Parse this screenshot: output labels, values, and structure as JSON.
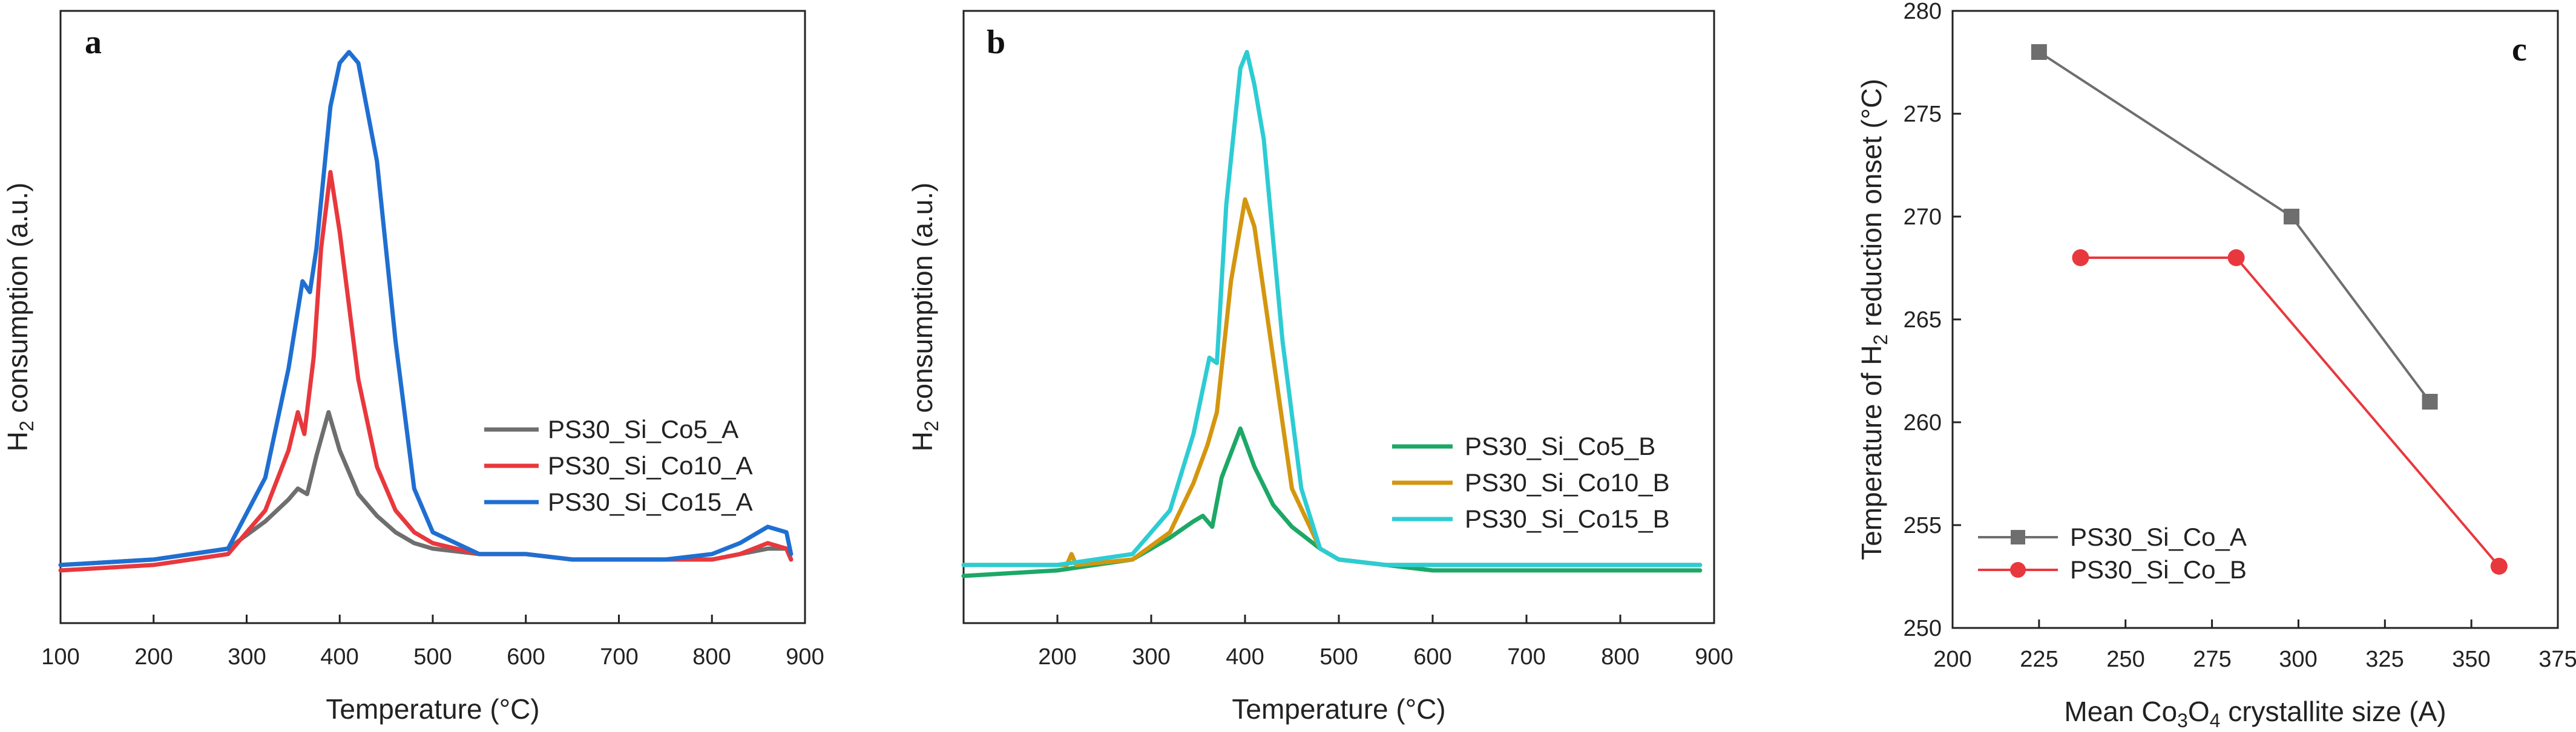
{
  "chart_data": [
    {
      "type": "line",
      "panel": "a",
      "xlabel": "Temperature (°C)",
      "ylabel": "H2 consumption (a.u.)",
      "xlim": [
        100,
        900
      ],
      "ylim": [
        0,
        1.0
      ],
      "xticks": [
        100,
        200,
        300,
        400,
        500,
        600,
        700,
        800,
        900
      ],
      "legend_position": "center-right",
      "series": [
        {
          "name": "PS30_Si_Co5_A",
          "color": "#6e6e6e",
          "x": [
            100,
            200,
            280,
            320,
            345,
            355,
            365,
            375,
            388,
            400,
            420,
            440,
            460,
            480,
            500,
            550,
            600,
            650,
            700,
            750,
            800,
            830,
            860,
            880,
            885
          ],
          "y": [
            0.04,
            0.05,
            0.07,
            0.12,
            0.16,
            0.18,
            0.17,
            0.24,
            0.32,
            0.25,
            0.17,
            0.13,
            0.1,
            0.08,
            0.07,
            0.06,
            0.06,
            0.05,
            0.05,
            0.05,
            0.05,
            0.06,
            0.07,
            0.07,
            0.05
          ]
        },
        {
          "name": "PS30_Si_Co10_A",
          "color": "#e8383d",
          "x": [
            100,
            200,
            280,
            320,
            345,
            355,
            362,
            372,
            380,
            390,
            400,
            420,
            440,
            460,
            480,
            500,
            550,
            600,
            650,
            700,
            750,
            800,
            830,
            860,
            880,
            885
          ],
          "y": [
            0.03,
            0.04,
            0.06,
            0.14,
            0.25,
            0.32,
            0.28,
            0.42,
            0.62,
            0.76,
            0.65,
            0.38,
            0.22,
            0.14,
            0.1,
            0.08,
            0.06,
            0.06,
            0.05,
            0.05,
            0.05,
            0.05,
            0.06,
            0.08,
            0.07,
            0.05
          ]
        },
        {
          "name": "PS30_Si_Co15_A",
          "color": "#1f6fd1",
          "x": [
            100,
            200,
            280,
            320,
            345,
            360,
            368,
            375,
            390,
            400,
            410,
            420,
            440,
            460,
            480,
            500,
            550,
            600,
            650,
            700,
            750,
            800,
            830,
            860,
            880,
            885
          ],
          "y": [
            0.04,
            0.05,
            0.07,
            0.2,
            0.4,
            0.56,
            0.54,
            0.62,
            0.88,
            0.96,
            0.98,
            0.96,
            0.78,
            0.45,
            0.18,
            0.1,
            0.06,
            0.06,
            0.05,
            0.05,
            0.05,
            0.06,
            0.08,
            0.11,
            0.1,
            0.06
          ]
        }
      ]
    },
    {
      "type": "line",
      "panel": "b",
      "xlabel": "Temperature (°C)",
      "ylabel": "H2 consumption (a.u.)",
      "xlim": [
        100,
        900
      ],
      "ylim": [
        0,
        1.0
      ],
      "xticks": [
        200,
        300,
        400,
        500,
        600,
        700,
        800,
        900
      ],
      "legend_position": "center-right",
      "series": [
        {
          "name": "PS30_Si_Co5_B",
          "color": "#1ca866",
          "x": [
            100,
            200,
            280,
            320,
            345,
            355,
            365,
            375,
            395,
            410,
            430,
            450,
            480,
            500,
            550,
            600,
            650,
            700,
            750,
            800,
            850,
            885
          ],
          "y": [
            0.02,
            0.03,
            0.05,
            0.09,
            0.12,
            0.13,
            0.11,
            0.2,
            0.29,
            0.22,
            0.15,
            0.11,
            0.07,
            0.05,
            0.04,
            0.03,
            0.03,
            0.03,
            0.03,
            0.03,
            0.03,
            0.03
          ]
        },
        {
          "name": "PS30_Si_Co10_B",
          "color": "#d4960f",
          "x": [
            100,
            200,
            210,
            215,
            220,
            280,
            320,
            345,
            360,
            370,
            385,
            400,
            410,
            430,
            450,
            480,
            500,
            550,
            600,
            650,
            700,
            800,
            885
          ],
          "y": [
            0.04,
            0.04,
            0.04,
            0.06,
            0.04,
            0.05,
            0.1,
            0.19,
            0.26,
            0.32,
            0.56,
            0.71,
            0.66,
            0.42,
            0.18,
            0.07,
            0.05,
            0.04,
            0.04,
            0.04,
            0.04,
            0.04,
            0.04
          ]
        },
        {
          "name": "PS30_Si_Co15_B",
          "color": "#2dccd3",
          "x": [
            100,
            200,
            280,
            320,
            345,
            362,
            370,
            380,
            395,
            402,
            410,
            420,
            440,
            460,
            480,
            500,
            550,
            600,
            650,
            700,
            800,
            885
          ],
          "y": [
            0.04,
            0.04,
            0.06,
            0.14,
            0.28,
            0.42,
            0.41,
            0.7,
            0.95,
            0.98,
            0.92,
            0.82,
            0.45,
            0.18,
            0.07,
            0.05,
            0.04,
            0.04,
            0.04,
            0.04,
            0.04,
            0.04
          ]
        }
      ]
    },
    {
      "type": "line",
      "panel": "c",
      "xlabel": "Mean Co3O4 crystallite size (A)",
      "ylabel": "Temperature of H2 reduction onset (°C)",
      "xlim": [
        200,
        375
      ],
      "ylim": [
        250,
        280
      ],
      "xticks": [
        200,
        225,
        250,
        275,
        300,
        325,
        350,
        375
      ],
      "yticks": [
        250,
        255,
        260,
        265,
        270,
        275,
        280
      ],
      "legend_position": "bottom-left",
      "series": [
        {
          "name": "PS30_Si_Co_A",
          "color": "#6e6e6e",
          "marker": "square",
          "x": [
            225,
            298,
            338
          ],
          "y": [
            278,
            270,
            261
          ]
        },
        {
          "name": "PS30_Si_Co_B",
          "color": "#e8383d",
          "marker": "circle",
          "x": [
            237,
            282,
            358
          ],
          "y": [
            268,
            268,
            253
          ]
        }
      ]
    }
  ],
  "labels": {
    "a": {
      "letter": "a",
      "xlabel": "Temperature (°C)",
      "ylabel_pre": "H",
      "ylabel_sub": "2",
      "ylabel_post": " consumption (a.u.)",
      "xticks": [
        "100",
        "200",
        "300",
        "400",
        "500",
        "600",
        "700",
        "800",
        "900"
      ],
      "legend": [
        "PS30_Si_Co5_A",
        "PS30_Si_Co10_A",
        "PS30_Si_Co15_A"
      ]
    },
    "b": {
      "letter": "b",
      "xlabel": "Temperature (°C)",
      "ylabel_pre": "H",
      "ylabel_sub": "2",
      "ylabel_post": " consumption (a.u.)",
      "xticks": [
        "200",
        "300",
        "400",
        "500",
        "600",
        "700",
        "800",
        "900"
      ],
      "legend": [
        "PS30_Si_Co5_B",
        "PS30_Si_Co10_B",
        "PS30_Si_Co15_B"
      ]
    },
    "c": {
      "letter": "c",
      "xlabel_pre": "Mean Co",
      "xlabel_sub1": "3",
      "xlabel_mid": "O",
      "xlabel_sub2": "4",
      "xlabel_post": " crystallite size (A)",
      "ylabel_pre": "Temperature of H",
      "ylabel_sub": "2",
      "ylabel_post": " reduction onset (°C)",
      "xticks": [
        "200",
        "225",
        "250",
        "275",
        "300",
        "325",
        "350",
        "375"
      ],
      "yticks": [
        "250",
        "255",
        "260",
        "265",
        "270",
        "275",
        "280"
      ],
      "legend": [
        "PS30_Si_Co_A",
        "PS30_Si_Co_B"
      ]
    }
  }
}
